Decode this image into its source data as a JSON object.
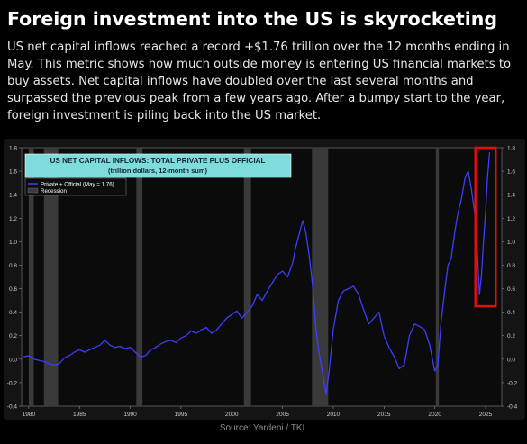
{
  "headline": "Foreign investment into the US is skyrocketing",
  "body": "US net capital inflows reached a record +$1.76 trillion over the 12 months ending in May. This metric shows how much outside money is entering US financial markets to buy assets. Net capital inflows have doubled over the last several months and surpassed the previous peak from a few years ago. After a bumpy start to the year, foreign investment is piling back into the US market.",
  "source": "Source: Yardeni / TKL",
  "colors": {
    "background": "#000000",
    "plot_bg": "#0b0b0b",
    "series": "#3d3dff",
    "recession": "#3a3a3a",
    "title_box": "#7fdcdc",
    "highlight": "#e01010"
  },
  "chart_data": {
    "type": "line",
    "title": "US NET CAPITAL INFLOWS: TOTAL PRIVATE PLUS OFFICIAL",
    "subtitle": "(trillion dollars, 12-month sum)",
    "xlim": [
      1979.3,
      2026.6
    ],
    "ylim": [
      -0.4,
      1.8
    ],
    "x_ticks": [
      1980,
      1985,
      1990,
      1995,
      2000,
      2005,
      2010,
      2015,
      2020,
      2025
    ],
    "y_ticks": [
      -0.4,
      -0.2,
      0.0,
      0.2,
      0.4,
      0.6,
      0.8,
      1.0,
      1.2,
      1.4,
      1.6,
      1.8
    ],
    "y_tick_labels": [
      "-0.4",
      "-0.2",
      "0.0",
      "0.2",
      "0.4",
      "0.6",
      "0.8",
      "1.0",
      "1.2",
      "1.4",
      "1.6",
      "1.8"
    ],
    "grid": false,
    "legend": {
      "position": "top-left",
      "entries": [
        {
          "label": "Private + Official (May = 1.76)",
          "kind": "line"
        },
        {
          "label": "Recession",
          "kind": "band"
        }
      ]
    },
    "recessions": [
      [
        1980.0,
        1980.5
      ],
      [
        1981.5,
        1982.9
      ],
      [
        1990.6,
        1991.2
      ],
      [
        2001.2,
        2001.9
      ],
      [
        2007.9,
        2009.5
      ],
      [
        2020.1,
        2020.4
      ]
    ],
    "highlight_range": {
      "x": [
        2024.0,
        2026.0
      ],
      "y": [
        0.45,
        1.8
      ]
    },
    "series": [
      {
        "name": "Private + Official (May = 1.76)",
        "x": [
          1979.5,
          1980.0,
          1980.5,
          1981.0,
          1981.5,
          1982.0,
          1982.5,
          1983.0,
          1983.5,
          1984.0,
          1984.5,
          1985.0,
          1985.5,
          1986.0,
          1986.5,
          1987.0,
          1987.5,
          1988.0,
          1988.5,
          1989.0,
          1989.5,
          1990.0,
          1990.5,
          1991.0,
          1991.5,
          1992.0,
          1992.5,
          1993.0,
          1993.5,
          1994.0,
          1994.5,
          1995.0,
          1995.5,
          1996.0,
          1996.5,
          1997.0,
          1997.5,
          1998.0,
          1998.5,
          1999.0,
          1999.5,
          2000.0,
          2000.5,
          2001.0,
          2001.5,
          2002.0,
          2002.5,
          2003.0,
          2003.5,
          2004.0,
          2004.5,
          2005.0,
          2005.5,
          2006.0,
          2006.3,
          2006.6,
          2007.0,
          2007.3,
          2007.6,
          2008.0,
          2008.3,
          2008.6,
          2009.0,
          2009.3,
          2009.6,
          2010.0,
          2010.5,
          2011.0,
          2011.5,
          2012.0,
          2012.5,
          2013.0,
          2013.5,
          2014.0,
          2014.5,
          2015.0,
          2015.5,
          2016.0,
          2016.5,
          2017.0,
          2017.5,
          2018.0,
          2018.5,
          2019.0,
          2019.5,
          2020.0,
          2020.3,
          2020.6,
          2021.0,
          2021.3,
          2021.6,
          2022.0,
          2022.3,
          2022.6,
          2023.0,
          2023.3,
          2023.6,
          2024.0,
          2024.2,
          2024.4,
          2024.6,
          2024.8,
          2025.0,
          2025.2,
          2025.4
        ],
        "y": [
          0.02,
          0.03,
          0.0,
          -0.01,
          -0.02,
          -0.04,
          -0.05,
          -0.04,
          0.01,
          0.03,
          0.06,
          0.08,
          0.06,
          0.08,
          0.1,
          0.12,
          0.16,
          0.12,
          0.1,
          0.11,
          0.09,
          0.1,
          0.06,
          0.02,
          0.03,
          0.08,
          0.1,
          0.13,
          0.15,
          0.16,
          0.14,
          0.18,
          0.2,
          0.24,
          0.22,
          0.25,
          0.27,
          0.22,
          0.25,
          0.3,
          0.35,
          0.38,
          0.41,
          0.35,
          0.4,
          0.45,
          0.55,
          0.5,
          0.58,
          0.65,
          0.72,
          0.75,
          0.7,
          0.82,
          0.95,
          1.05,
          1.18,
          1.08,
          0.9,
          0.6,
          0.25,
          0.05,
          -0.15,
          -0.3,
          -0.1,
          0.25,
          0.5,
          0.58,
          0.6,
          0.62,
          0.55,
          0.42,
          0.3,
          0.35,
          0.4,
          0.2,
          0.1,
          0.02,
          -0.08,
          -0.05,
          0.2,
          0.3,
          0.28,
          0.25,
          0.12,
          -0.1,
          -0.05,
          0.3,
          0.6,
          0.8,
          0.85,
          1.1,
          1.25,
          1.35,
          1.55,
          1.6,
          1.45,
          1.2,
          0.9,
          0.55,
          0.72,
          1.0,
          1.25,
          1.55,
          1.76
        ]
      }
    ]
  }
}
